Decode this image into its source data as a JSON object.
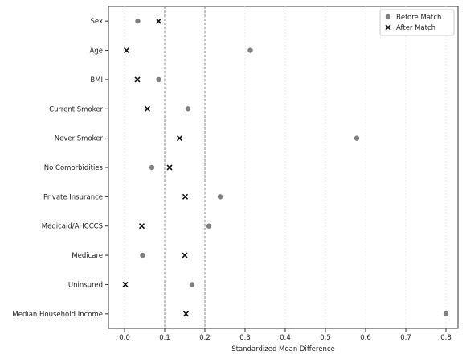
{
  "chart_data": {
    "type": "scatter",
    "xlabel": "Standardized Mean Difference",
    "ylabel": "",
    "xlim": [
      -0.04,
      0.83
    ],
    "xticks": [
      "0.0",
      "0.1",
      "0.2",
      "0.3",
      "0.4",
      "0.5",
      "0.6",
      "0.7",
      "0.8"
    ],
    "grid": "vertical dotted",
    "reference_lines": [
      0.1,
      0.2
    ],
    "legend_position": "top-right",
    "categories": [
      "Sex",
      "Age",
      "BMI",
      "Current Smoker",
      "Never Smoker",
      "No Comorbidities",
      "Private Insurance",
      "Medicaid/AHCCCS",
      "Medicare",
      "Uninsured",
      "Median Household Income"
    ],
    "series": [
      {
        "name": "Before Match",
        "marker": "circle",
        "color": "#808080",
        "values": [
          0.033,
          0.313,
          0.085,
          0.158,
          0.578,
          0.068,
          0.238,
          0.21,
          0.045,
          0.168,
          0.8
        ]
      },
      {
        "name": "After Match",
        "marker": "x",
        "color": "#111111",
        "values": [
          0.085,
          0.005,
          0.032,
          0.057,
          0.137,
          0.112,
          0.151,
          0.043,
          0.15,
          0.002,
          0.153
        ]
      }
    ]
  }
}
